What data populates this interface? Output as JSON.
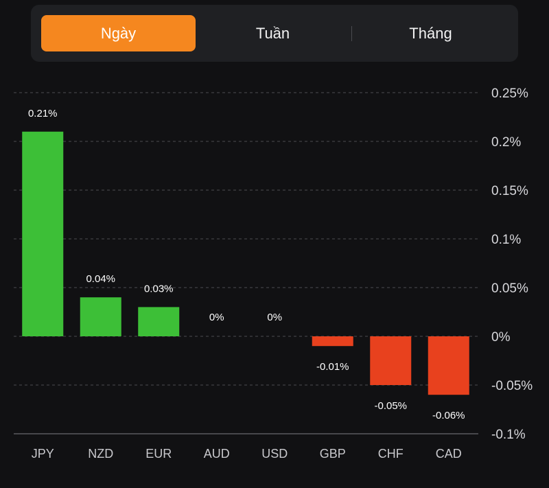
{
  "tabs": [
    {
      "label": "Ngày",
      "active": true
    },
    {
      "label": "Tuần",
      "active": false
    },
    {
      "label": "Tháng",
      "active": false
    }
  ],
  "colors": {
    "accent": "#f5871f",
    "positive": "#3dbf37",
    "negative": "#e8411e",
    "grid": "#4d4d52",
    "background": "#111113"
  },
  "chart_data": {
    "type": "bar",
    "categories": [
      "JPY",
      "NZD",
      "EUR",
      "AUD",
      "USD",
      "GBP",
      "CHF",
      "CAD"
    ],
    "values": [
      0.21,
      0.04,
      0.03,
      0,
      0,
      -0.01,
      -0.05,
      -0.06
    ],
    "value_labels": [
      "0.21%",
      "0.04%",
      "0.03%",
      "0%",
      "0%",
      "-0.01%",
      "-0.05%",
      "-0.06%"
    ],
    "y_ticks": [
      0.25,
      0.2,
      0.15,
      0.1,
      0.05,
      0,
      -0.05,
      -0.1
    ],
    "y_tick_labels": [
      "0.25%",
      "0.2%",
      "0.15%",
      "0.1%",
      "0.05%",
      "0%",
      "-0.05%",
      "-0.1%"
    ],
    "ylim": [
      -0.1,
      0.25
    ],
    "axis_position": "right",
    "grid": true
  }
}
